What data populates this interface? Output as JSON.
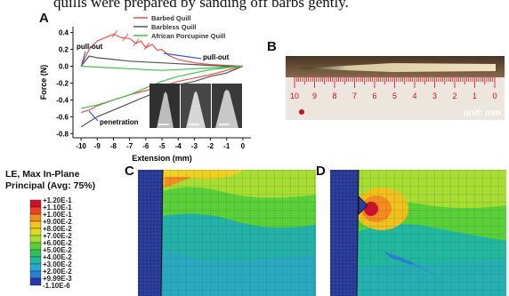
{
  "caption": "quills were prepared by sanding off barbs gently.",
  "panels": {
    "a": "A",
    "b": "B",
    "c": "C",
    "d": "D"
  },
  "chart_data": {
    "type": "line",
    "xlabel": "Extension (mm)",
    "ylabel": "Force (N)",
    "xlim": [
      -10.5,
      0.5
    ],
    "ylim": [
      -0.85,
      0.47
    ],
    "x_ticks": [
      "-10",
      "-9",
      "-8",
      "-7",
      "-6",
      "-5",
      "-4",
      "-3",
      "-2",
      "-1",
      "0"
    ],
    "y_ticks": [
      "0.4",
      "0.2",
      "0.0",
      "-0.2",
      "-0.4",
      "-0.6",
      "-0.8"
    ],
    "y_tick_values": [
      0.4,
      0.2,
      0.0,
      -0.2,
      -0.4,
      -0.6,
      -0.8
    ],
    "legend_placement": "top-right",
    "series": [
      {
        "name": "Barbed Quill",
        "color": "#e8504a",
        "x": [
          -10,
          -9.5,
          -9,
          -8.5,
          -8,
          -7.5,
          -7,
          -6.6,
          -6.3,
          -6,
          -5.6,
          -5.3,
          -5,
          -4.6,
          -4,
          -3,
          -2,
          -1,
          0,
          -1,
          -2,
          -3,
          -4,
          -5,
          -6,
          -7,
          -8,
          -9,
          -9.5,
          -10
        ],
        "y": [
          0.0,
          0.2,
          0.3,
          0.34,
          0.38,
          0.34,
          0.33,
          0.27,
          0.3,
          0.22,
          0.26,
          0.19,
          0.2,
          0.13,
          0.08,
          0.04,
          0.02,
          0.01,
          0.0,
          -0.05,
          -0.1,
          -0.14,
          -0.18,
          -0.24,
          -0.29,
          -0.34,
          -0.4,
          -0.47,
          -0.52,
          -0.55
        ]
      },
      {
        "name": "Barbless Quill",
        "color": "#555555",
        "x": [
          -10,
          -9.5,
          -9,
          -8,
          -7,
          -6,
          -5,
          -4,
          -3,
          -2,
          -1,
          0,
          -1,
          -2,
          -3,
          -4,
          -5,
          -6,
          -7,
          -8,
          -9,
          -9.5,
          -10
        ],
        "y": [
          0.0,
          0.12,
          0.1,
          0.08,
          0.06,
          0.05,
          0.04,
          0.03,
          0.02,
          0.01,
          0.0,
          0.0,
          -0.08,
          -0.12,
          -0.18,
          -0.22,
          -0.28,
          -0.36,
          -0.44,
          -0.52,
          -0.6,
          -0.66,
          -0.72
        ]
      },
      {
        "name": "African Porcupine Quill",
        "color": "#3ec24a",
        "x": [
          -10,
          -9,
          -8,
          -7,
          -6,
          -5,
          -4,
          -3,
          -2,
          -1,
          0,
          -1,
          -2,
          -3,
          -4,
          -5,
          -6,
          -7,
          -8,
          -9,
          -10
        ],
        "y": [
          0.0,
          -0.01,
          -0.02,
          -0.03,
          -0.04,
          -0.05,
          -0.04,
          -0.03,
          -0.02,
          -0.01,
          0.0,
          -0.02,
          -0.04,
          -0.08,
          -0.12,
          -0.18,
          -0.26,
          -0.34,
          -0.4,
          -0.46,
          -0.5
        ]
      }
    ],
    "annotations": [
      "pull-out",
      "pull-out",
      "penetration"
    ]
  },
  "ruler": {
    "numbers": [
      "10",
      "9",
      "8",
      "7",
      "6",
      "5",
      "4",
      "3",
      "2",
      "1",
      "0"
    ],
    "unit_label": "unit: mm"
  },
  "fea_legend": {
    "title_line1": "LE, Max In-Plane",
    "title_line2": "Principal (Avg: 75%)",
    "labels": [
      "+1.20E-1",
      "+1.10E-1",
      "+1.00E-1",
      "+9.00E-2",
      "+8.00E-2",
      "+7.00E-2",
      "+6.00E-2",
      "+5.00E-2",
      "+4.00E-2",
      "+3.00E-2",
      "+2.00E-2",
      "+9.99E-3",
      "-1.10E-6"
    ],
    "colors": [
      "#d0102a",
      "#f0402a",
      "#f58a1e",
      "#f6c21c",
      "#d8dc22",
      "#a8dd32",
      "#5ad038",
      "#2fc05a",
      "#22b89c",
      "#2aa8d0",
      "#2a7ed8",
      "#2438a8"
    ]
  }
}
